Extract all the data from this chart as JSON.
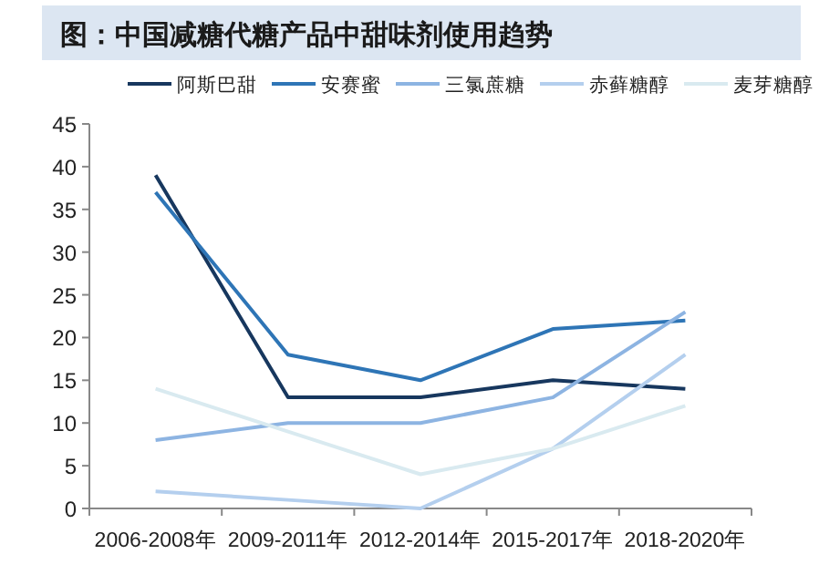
{
  "chart_data": {
    "type": "line",
    "title": "图：中国减糖代糖产品中甜味剂使用趋势",
    "categories": [
      "2006-2008年",
      "2009-2011年",
      "2012-2014年",
      "2015-2017年",
      "2018-2020年"
    ],
    "series": [
      {
        "name": "阿斯巴甜",
        "color": "#17375e",
        "values": [
          39,
          13,
          13,
          15,
          14
        ]
      },
      {
        "name": "安赛蜜",
        "color": "#2e75b6",
        "values": [
          37,
          18,
          15,
          21,
          22
        ]
      },
      {
        "name": "三氯蔗糖",
        "color": "#8db4e2",
        "values": [
          8,
          10,
          10,
          13,
          23
        ]
      },
      {
        "name": "赤藓糖醇",
        "color": "#b4cfee",
        "values": [
          2,
          1,
          0,
          7,
          18
        ]
      },
      {
        "name": "麦芽糖醇",
        "color": "#d9eaf0",
        "values": [
          14,
          9,
          4,
          7,
          12
        ]
      }
    ],
    "ylim": [
      0,
      45
    ],
    "yticks": [
      0,
      5,
      10,
      15,
      20,
      25,
      30,
      35,
      40,
      45
    ],
    "legend": "top",
    "marker": "none",
    "line_style": "solid",
    "grid": false
  }
}
